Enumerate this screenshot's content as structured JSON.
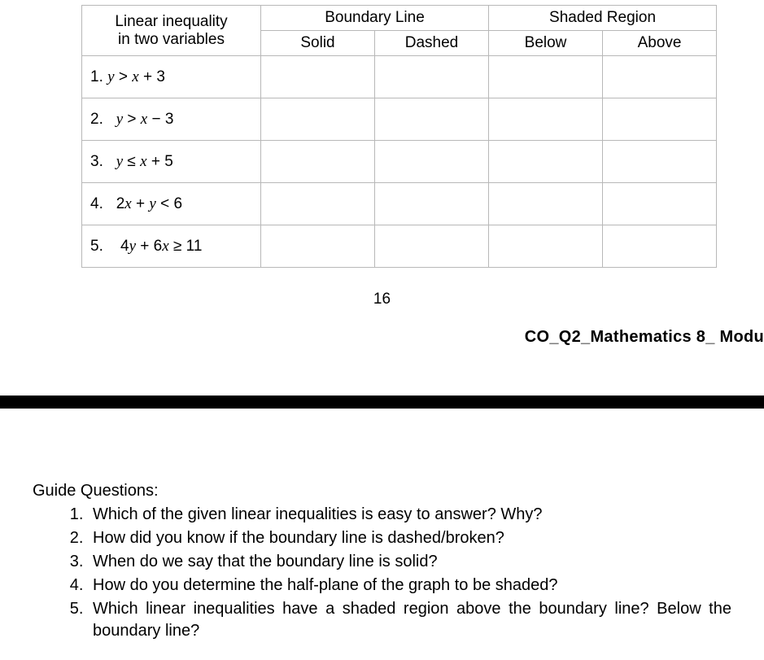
{
  "table": {
    "header": {
      "col1_line1": "Linear inequality",
      "col1_line2": "in two variables",
      "col2": "Boundary Line",
      "col2a": "Solid",
      "col2b": "Dashed",
      "col3": "Shaded Region",
      "col3a": "Below",
      "col3b": "Above"
    },
    "rows": [
      {
        "num": "1.",
        "expr_html": "<span class='math'>y</span>&nbsp;&gt;&nbsp;<span class='math'>x</span>&nbsp;+&nbsp;<span class='mnum'>3</span>"
      },
      {
        "num": "2.",
        "expr_html": "<span class='math'>y</span>&nbsp;&gt;&nbsp;<span class='math'>x</span>&nbsp;&minus;&nbsp;<span class='mnum'>3</span>"
      },
      {
        "num": "3.",
        "expr_html": "<span class='math'>y</span>&nbsp;&le;&nbsp;<span class='math'>x</span>&nbsp;+&nbsp;<span class='mnum'>5</span>"
      },
      {
        "num": "4.",
        "expr_html": "<span class='mnum'>2</span><span class='math'>x</span>&nbsp;+&nbsp;<span class='math'>y</span>&nbsp;&lt;&nbsp;<span class='mnum'>6</span>"
      },
      {
        "num": "5.",
        "expr_html": "<span class='mnum'>4</span><span class='math'>y</span>&nbsp;+&nbsp;<span class='mnum'>6</span><span class='math'>x</span>&nbsp;&ge;&nbsp;<span class='mnum'>11</span>"
      }
    ]
  },
  "page_number": "16",
  "footer_label": "CO_Q2_Mathematics 8_ Modu",
  "guide": {
    "title": "Guide Questions:",
    "items": [
      "Which of the given linear inequalities is easy to answer? Why?",
      "How did you know if the boundary line is dashed/broken?",
      "When do we say that the boundary line is solid?",
      "How do you determine the half-plane of the graph to be shaded?",
      "Which linear inequalities have a shaded region above the boundary line? Below the boundary line?"
    ]
  },
  "style": {
    "border_color": "#b8b8b8",
    "text_color": "#000000",
    "background_color": "#ffffff",
    "bar_color": "#000000",
    "body_fontsize": 20,
    "table_fontsize": 19
  }
}
